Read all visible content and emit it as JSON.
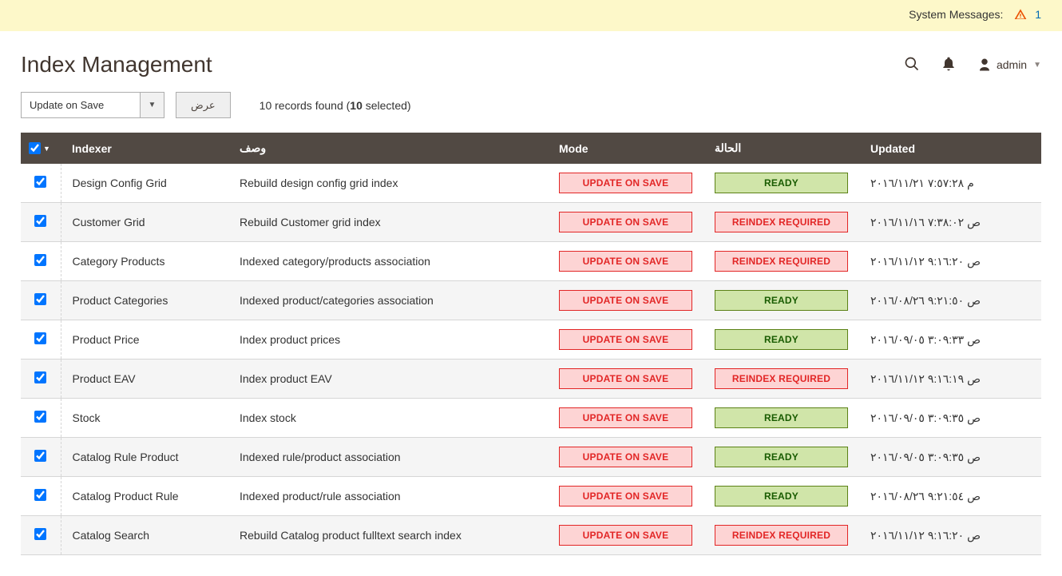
{
  "system_messages": {
    "label": "System Messages:",
    "count": "1"
  },
  "page_title": "Index Management",
  "admin_user": "admin",
  "toolbar": {
    "mass_action_selected": "Update on Save",
    "submit_label": "عرض",
    "records_prefix": "10 records found (",
    "records_bold": "10",
    "records_suffix": " selected)"
  },
  "columns": {
    "indexer": "Indexer",
    "description": "وصف",
    "mode": "Mode",
    "status": "الحالة",
    "updated": "Updated"
  },
  "status_labels": {
    "ready": "READY",
    "reindex": "REINDEX REQUIRED"
  },
  "mode_label": "UPDATE ON SAVE",
  "colors": {
    "badge_red_bg": "#fdd4d4",
    "badge_red_border": "#e22626",
    "badge_red_text": "#e22626",
    "badge_green_bg": "#d0e5a9",
    "badge_green_border": "#5b8116",
    "badge_green_text": "#185b00",
    "header_bg": "#514943",
    "msg_bg": "#fdf8c9"
  },
  "rows": [
    {
      "indexer": "Design Config Grid",
      "description": "Rebuild design config grid index",
      "status": "ready",
      "updated": "م ٧:٥٧:٢٨ ٢٠١٦/١١/٢١"
    },
    {
      "indexer": "Customer Grid",
      "description": "Rebuild Customer grid index",
      "status": "reindex",
      "updated": "ص ٧:٣٨:٠٢ ٢٠١٦/١١/١٦"
    },
    {
      "indexer": "Category Products",
      "description": "Indexed category/products association",
      "status": "reindex",
      "updated": "ص ٩:١٦:٢٠ ٢٠١٦/١١/١٢"
    },
    {
      "indexer": "Product Categories",
      "description": "Indexed product/categories association",
      "status": "ready",
      "updated": "ص ٩:٢١:٥٠ ٢٠١٦/٠٨/٢٦"
    },
    {
      "indexer": "Product Price",
      "description": "Index product prices",
      "status": "ready",
      "updated": "ص ٣:٠٩:٣٣ ٢٠١٦/٠٩/٠٥"
    },
    {
      "indexer": "Product EAV",
      "description": "Index product EAV",
      "status": "reindex",
      "updated": "ص ٩:١٦:١٩ ٢٠١٦/١١/١٢"
    },
    {
      "indexer": "Stock",
      "description": "Index stock",
      "status": "ready",
      "updated": "ص ٣:٠٩:٣٥ ٢٠١٦/٠٩/٠٥"
    },
    {
      "indexer": "Catalog Rule Product",
      "description": "Indexed rule/product association",
      "status": "ready",
      "updated": "ص ٣:٠٩:٣٥ ٢٠١٦/٠٩/٠٥"
    },
    {
      "indexer": "Catalog Product Rule",
      "description": "Indexed product/rule association",
      "status": "ready",
      "updated": "ص ٩:٢١:٥٤ ٢٠١٦/٠٨/٢٦"
    },
    {
      "indexer": "Catalog Search",
      "description": "Rebuild Catalog product fulltext search index",
      "status": "reindex",
      "updated": "ص ٩:١٦:٢٠ ٢٠١٦/١١/١٢"
    }
  ]
}
